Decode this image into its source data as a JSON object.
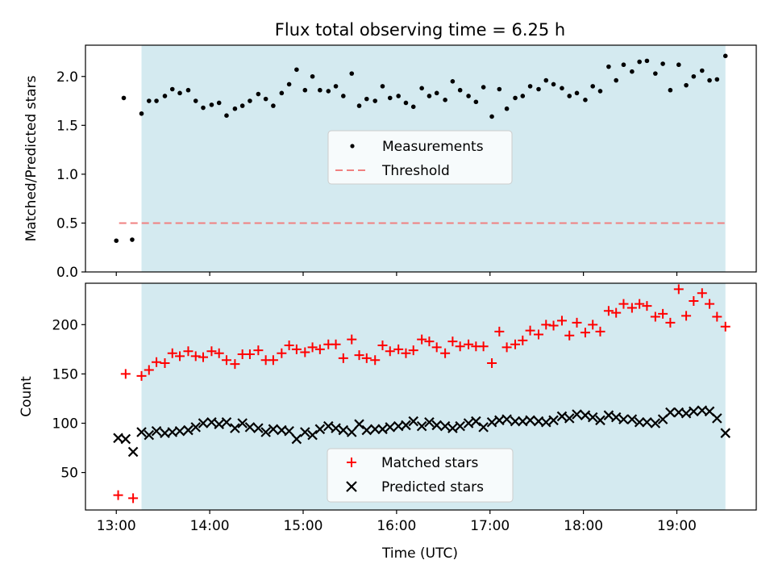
{
  "title": "Flux total observing time = 6.25 h",
  "colors": {
    "band": "#d4eaf0",
    "threshold": "#f08080",
    "matched": "#ff0000",
    "predicted": "#000000",
    "measurement": "#000000"
  },
  "chart_data": [
    {
      "type": "scatter",
      "ylabel": "Matched/Predicted stars",
      "xlim": [
        12.67,
        19.85
      ],
      "ylim": [
        0,
        2.32
      ],
      "yticks": [
        0.0,
        0.5,
        1.0,
        1.5,
        2.0
      ],
      "ytick_labels": [
        "0.0",
        "0.5",
        "1.0",
        "1.5",
        "2.0"
      ],
      "observing_window": [
        13.27,
        19.52
      ],
      "threshold": {
        "value": 0.5,
        "x_start": 13.03,
        "x_end": 19.52
      },
      "legend": {
        "position": "center",
        "measurements": "Measurements",
        "threshold": "Threshold"
      },
      "series": [
        {
          "name": "Measurements",
          "x": [
            13.0,
            13.08,
            13.17,
            13.27,
            13.35,
            13.43,
            13.52,
            13.6,
            13.68,
            13.77,
            13.85,
            13.93,
            14.02,
            14.1,
            14.18,
            14.27,
            14.35,
            14.43,
            14.52,
            14.6,
            14.68,
            14.77,
            14.85,
            14.93,
            15.02,
            15.1,
            15.18,
            15.27,
            15.35,
            15.43,
            15.52,
            15.6,
            15.68,
            15.77,
            15.85,
            15.93,
            16.02,
            16.1,
            16.18,
            16.27,
            16.35,
            16.43,
            16.52,
            16.6,
            16.68,
            16.77,
            16.85,
            16.93,
            17.02,
            17.1,
            17.18,
            17.27,
            17.35,
            17.43,
            17.52,
            17.6,
            17.68,
            17.77,
            17.85,
            17.93,
            18.02,
            18.1,
            18.18,
            18.27,
            18.35,
            18.43,
            18.52,
            18.6,
            18.68,
            18.77,
            18.85,
            18.93,
            19.02,
            19.1,
            19.18,
            19.27,
            19.35,
            19.43,
            19.52
          ],
          "y": [
            0.32,
            1.78,
            0.33,
            1.62,
            1.75,
            1.75,
            1.8,
            1.87,
            1.83,
            1.86,
            1.75,
            1.68,
            1.71,
            1.73,
            1.6,
            1.67,
            1.7,
            1.75,
            1.82,
            1.77,
            1.7,
            1.83,
            1.92,
            2.07,
            1.86,
            2.0,
            1.86,
            1.85,
            1.9,
            1.8,
            2.03,
            1.7,
            1.77,
            1.75,
            1.9,
            1.78,
            1.8,
            1.73,
            1.69,
            1.88,
            1.8,
            1.83,
            1.76,
            1.95,
            1.86,
            1.8,
            1.74,
            1.89,
            1.59,
            1.87,
            1.67,
            1.78,
            1.8,
            1.9,
            1.87,
            1.96,
            1.92,
            1.88,
            1.8,
            1.83,
            1.76,
            1.9,
            1.85,
            2.1,
            1.96,
            2.12,
            2.05,
            2.15,
            2.16,
            2.03,
            2.13,
            1.86,
            2.12,
            1.91,
            2.0,
            2.06,
            1.96,
            1.97,
            2.21
          ]
        }
      ]
    },
    {
      "type": "scatter",
      "xlabel": "Time (UTC)",
      "ylabel": "Count",
      "xlim": [
        12.67,
        19.85
      ],
      "ylim": [
        12,
        242
      ],
      "yticks": [
        50,
        100,
        150,
        200
      ],
      "ytick_labels": [
        "50",
        "100",
        "150",
        "200"
      ],
      "xticks": [
        13,
        14,
        15,
        16,
        17,
        18,
        19
      ],
      "xtick_labels": [
        "13:00",
        "14:00",
        "15:00",
        "16:00",
        "17:00",
        "18:00",
        "19:00"
      ],
      "observing_window": [
        13.27,
        19.52
      ],
      "legend": {
        "position": "lower center",
        "matched": "Matched stars",
        "predicted": "Predicted stars"
      },
      "series": [
        {
          "name": "Matched stars",
          "marker": "+",
          "x": [
            13.02,
            13.1,
            13.18,
            13.27,
            13.35,
            13.43,
            13.52,
            13.6,
            13.68,
            13.77,
            13.85,
            13.93,
            14.02,
            14.1,
            14.18,
            14.27,
            14.35,
            14.43,
            14.52,
            14.6,
            14.68,
            14.77,
            14.85,
            14.93,
            15.02,
            15.1,
            15.18,
            15.27,
            15.35,
            15.43,
            15.52,
            15.6,
            15.68,
            15.77,
            15.85,
            15.93,
            16.02,
            16.1,
            16.18,
            16.27,
            16.35,
            16.43,
            16.52,
            16.6,
            16.68,
            16.77,
            16.85,
            16.93,
            17.02,
            17.1,
            17.18,
            17.27,
            17.35,
            17.43,
            17.52,
            17.6,
            17.68,
            17.77,
            17.85,
            17.93,
            18.02,
            18.1,
            18.18,
            18.27,
            18.35,
            18.43,
            18.52,
            18.6,
            18.68,
            18.77,
            18.85,
            18.93,
            19.02,
            19.1,
            19.18,
            19.27,
            19.35,
            19.43,
            19.52
          ],
          "y": [
            27,
            150,
            24,
            148,
            154,
            162,
            161,
            171,
            168,
            173,
            168,
            167,
            173,
            171,
            164,
            160,
            170,
            170,
            174,
            164,
            164,
            171,
            179,
            175,
            172,
            177,
            175,
            180,
            180,
            166,
            185,
            169,
            166,
            164,
            179,
            173,
            175,
            171,
            174,
            185,
            183,
            177,
            171,
            183,
            178,
            180,
            178,
            178,
            161,
            193,
            177,
            180,
            184,
            194,
            190,
            200,
            199,
            204,
            189,
            202,
            192,
            200,
            193,
            214,
            212,
            221,
            217,
            221,
            219,
            208,
            211,
            202,
            236,
            209,
            224,
            232,
            221,
            208,
            198
          ]
        },
        {
          "name": "Predicted stars",
          "marker": "x",
          "x": [
            13.02,
            13.1,
            13.18,
            13.27,
            13.35,
            13.43,
            13.52,
            13.6,
            13.68,
            13.77,
            13.85,
            13.93,
            14.02,
            14.1,
            14.18,
            14.27,
            14.35,
            14.43,
            14.52,
            14.6,
            14.68,
            14.77,
            14.85,
            14.93,
            15.02,
            15.1,
            15.18,
            15.27,
            15.35,
            15.43,
            15.52,
            15.6,
            15.68,
            15.77,
            15.85,
            15.93,
            16.02,
            16.1,
            16.18,
            16.27,
            16.35,
            16.43,
            16.52,
            16.6,
            16.68,
            16.77,
            16.85,
            16.93,
            17.02,
            17.1,
            17.18,
            17.27,
            17.35,
            17.43,
            17.52,
            17.6,
            17.68,
            17.77,
            17.85,
            17.93,
            18.02,
            18.1,
            18.18,
            18.27,
            18.35,
            18.43,
            18.52,
            18.6,
            18.68,
            18.77,
            18.85,
            18.93,
            19.02,
            19.1,
            19.18,
            19.27,
            19.35,
            19.43,
            19.52
          ],
          "y": [
            85,
            84,
            71,
            91,
            88,
            92,
            90,
            91,
            92,
            93,
            96,
            100,
            101,
            99,
            101,
            95,
            100,
            96,
            95,
            91,
            94,
            93,
            92,
            84,
            91,
            88,
            94,
            97,
            95,
            93,
            91,
            99,
            93,
            94,
            94,
            96,
            97,
            98,
            102,
            97,
            101,
            98,
            97,
            95,
            97,
            100,
            102,
            96,
            101,
            103,
            104,
            102,
            102,
            103,
            102,
            101,
            103,
            107,
            105,
            109,
            108,
            106,
            103,
            108,
            106,
            104,
            104,
            101,
            101,
            100,
            104,
            111,
            111,
            110,
            112,
            113,
            112,
            105,
            90
          ]
        }
      ]
    }
  ]
}
